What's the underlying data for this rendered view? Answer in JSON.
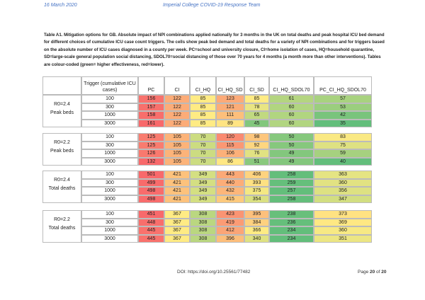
{
  "header": {
    "date": "16 March 2020",
    "title": "Imperial College COVID-19 Response Team"
  },
  "caption": {
    "lead": "Table A1. Mitigation options for GB.",
    "text": "Absolute impact of NPI combinations applied nationally for 3 months in the UK on total deaths and peak hospital ICU bed demand for different choices of cumulative ICU case count triggers. The cells show peak bed demand and total deaths for a variety of NPI combinations and for triggers based on the absolute number of ICU cases diagnosed in a county per week. PC=school and university closure, CI=home isolation of cases, HQ=household quarantine, SD=large-scale general population social distancing, SDOL70=social distancing of those over 70 years for 4 months (a month more than other interventions). Tables are colour-coded (green= higher effectiveness, red=lower)."
  },
  "table": {
    "columns": [
      "Trigger (cumulative ICU cases)",
      "PC",
      "CI",
      "CI_HQ",
      "CI_HQ_SD",
      "CI_SD",
      "CI_HQ_SDOL70",
      "PC_CI_HQ_SDOL70"
    ],
    "blocks": [
      {
        "scenario": "R0=2.4",
        "measure": "Peak beds",
        "rows": [
          [
            100,
            156,
            122,
            85,
            123,
            85,
            61,
            57
          ],
          [
            300,
            157,
            122,
            85,
            121,
            78,
            60,
            53
          ],
          [
            1000,
            158,
            122,
            85,
            111,
            65,
            60,
            42
          ],
          [
            3000,
            161,
            122,
            85,
            89,
            45,
            60,
            35
          ]
        ]
      },
      {
        "scenario": "R0=2.2",
        "measure": "Peak beds",
        "rows": [
          [
            100,
            125,
            105,
            70,
            120,
            98,
            50,
            83
          ],
          [
            300,
            125,
            105,
            70,
            115,
            92,
            50,
            75
          ],
          [
            1000,
            126,
            105,
            70,
            106,
            76,
            49,
            59
          ],
          [
            3000,
            132,
            105,
            70,
            86,
            51,
            49,
            40
          ]
        ]
      },
      {
        "scenario": "R0=2.4",
        "measure": "Total deaths",
        "rows": [
          [
            100,
            501,
            421,
            349,
            443,
            406,
            258,
            363
          ],
          [
            300,
            499,
            421,
            349,
            440,
            393,
            259,
            360
          ],
          [
            1000,
            498,
            421,
            349,
            432,
            375,
            257,
            356
          ],
          [
            3000,
            498,
            421,
            349,
            415,
            354,
            258,
            347
          ]
        ]
      },
      {
        "scenario": "R0=2.2",
        "measure": "Total deaths",
        "rows": [
          [
            100,
            451,
            367,
            308,
            423,
            395,
            238,
            373
          ],
          [
            300,
            448,
            367,
            308,
            419,
            384,
            236,
            369
          ],
          [
            1000,
            445,
            367,
            308,
            412,
            366,
            234,
            360
          ],
          [
            3000,
            445,
            367,
            308,
            396,
            340,
            234,
            351
          ]
        ]
      }
    ]
  },
  "footer": {
    "doi": "DOI: https://doi.org/10.25561/77482",
    "page_word": "Page",
    "page_number": 20,
    "page_of": "of",
    "page_total": 20
  }
}
